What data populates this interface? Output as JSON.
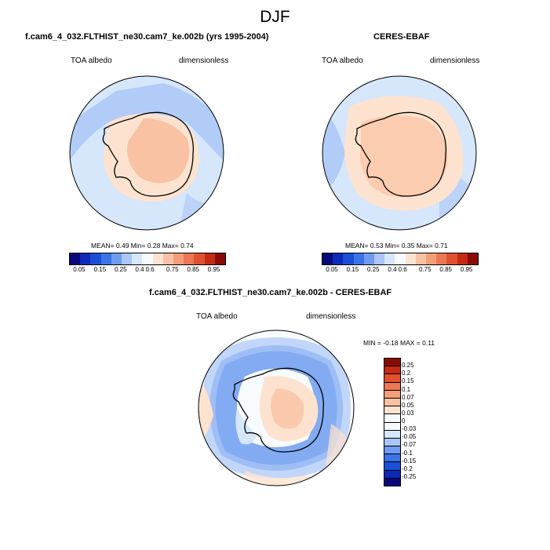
{
  "title": "DJF",
  "panels": [
    {
      "title": "f.cam6_4_032.FLTHIST_ne30.cam7_ke.002b (yrs 1995-2004)",
      "left_label": "TOA albedo",
      "right_label": "dimensionless",
      "stats": {
        "mean": "0.49",
        "min": "0.28",
        "max": "0.74"
      },
      "stats_text": "MEAN=  0.49  Min=  0.28  Max=  0.74"
    },
    {
      "title": "CERES-EBAF",
      "left_label": "TOA albedo",
      "right_label": "dimensionless",
      "stats": {
        "mean": "0.53",
        "min": "0.35",
        "max": "0.71"
      },
      "stats_text": "MEAN=  0.53  Min=  0.35  Max=  0.71"
    },
    {
      "title": "f.cam6_4_032.FLTHIST_ne30.cam7_ke.002b - CERES-EBAF",
      "left_label": "TOA albedo",
      "right_label": "dimensionless",
      "stats": {
        "min": "-0.18",
        "max": "0.11"
      },
      "stats_text": "MIN = -0.18 MAX =  0.11"
    }
  ],
  "colorbar_albedo": {
    "labels": [
      "0.05",
      "0.15",
      "0.25",
      "0.4",
      "0.6",
      "0.75",
      "0.85",
      "0.95"
    ],
    "colors": [
      "#08087a",
      "#0c2bb8",
      "#1a4fd8",
      "#3b74e8",
      "#6f9cf0",
      "#a9c6f7",
      "#d6e6fb",
      "#f7fafe",
      "#fde3cf",
      "#f9c2a2",
      "#f39e78",
      "#ec7752",
      "#e0512f",
      "#c52a14",
      "#8a0b06"
    ]
  },
  "colorbar_diff": {
    "labels": [
      "0.25",
      "0.2",
      "0.15",
      "0.1",
      "0.07",
      "0.05",
      "0.03",
      "0",
      "-0.03",
      "-0.05",
      "-0.07",
      "-0.1",
      "-0.15",
      "-0.2",
      "-0.25"
    ],
    "colors": [
      "#8a0b06",
      "#c52a14",
      "#e0512f",
      "#ec7752",
      "#f39e78",
      "#f9c2a2",
      "#fde3cf",
      "#f7fafe",
      "#f7fafe",
      "#d6e6fb",
      "#a9c6f7",
      "#6f9cf0",
      "#3b74e8",
      "#1a4fd8",
      "#0c2bb8",
      "#08087a"
    ]
  }
}
